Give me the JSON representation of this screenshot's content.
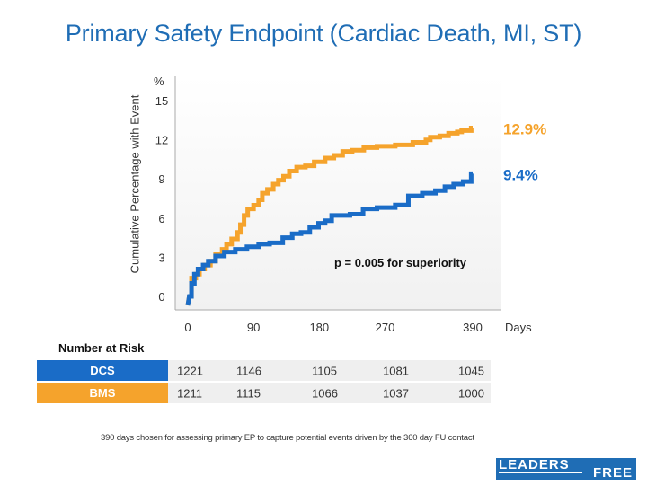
{
  "chart_data": {
    "type": "line",
    "title": "Primary Safety Endpoint (Cardiac Death, MI, ST)",
    "ylabel": "Cumulative Percentage with Event",
    "yunit": "%",
    "xlabel": "Days",
    "ylim": [
      0,
      15
    ],
    "xlim": [
      0,
      390
    ],
    "yticks": [
      "0",
      "3",
      "6",
      "9",
      "12",
      "15"
    ],
    "ytick_values": [
      0,
      3,
      6,
      9,
      12,
      15
    ],
    "xticks": [
      "0",
      "90",
      "180",
      "270",
      "390"
    ],
    "xtick_values": [
      0,
      90,
      180,
      270,
      390
    ],
    "grid": false,
    "annotation": "p = 0.005 for superiority",
    "series": [
      {
        "name": "BMS",
        "color": "#f5a32c",
        "end_label": "12.9%",
        "x": [
          0,
          2,
          5,
          11,
          16,
          23,
          31,
          38,
          47,
          53,
          60,
          68,
          72,
          77,
          82,
          90,
          97,
          102,
          109,
          117,
          124,
          131,
          139,
          149,
          161,
          173,
          188,
          200,
          212,
          225,
          241,
          259,
          284,
          308,
          326,
          332,
          345,
          357,
          369,
          375,
          388,
          390
        ],
        "y": [
          0,
          0,
          1.4,
          1.7,
          2.1,
          2.4,
          2.7,
          3.2,
          3.6,
          4.0,
          4.4,
          4.9,
          5.5,
          6.2,
          6.7,
          6.98,
          7.4,
          7.9,
          8.2,
          8.6,
          8.9,
          9.2,
          9.6,
          9.9,
          10.0,
          10.3,
          10.6,
          10.8,
          11.1,
          11.2,
          11.4,
          11.5,
          11.6,
          11.8,
          11.99,
          12.2,
          12.3,
          12.5,
          12.6,
          12.7,
          12.9,
          12.9
        ]
      },
      {
        "name": "DCS",
        "color": "#1a6cc7",
        "end_label": "9.4%",
        "x": [
          0,
          2,
          5,
          9,
          14,
          21,
          28,
          38,
          50,
          65,
          81,
          97,
          112,
          130,
          143,
          155,
          167,
          179,
          188,
          197,
          222,
          240,
          259,
          284,
          302,
          321,
          339,
          352,
          364,
          377,
          388,
          390
        ],
        "y": [
          0,
          0,
          1.0,
          1.7,
          2.1,
          2.4,
          2.7,
          3.1,
          3.4,
          3.6,
          3.8,
          4.0,
          4.1,
          4.5,
          4.8,
          4.9,
          5.3,
          5.6,
          5.8,
          6.2,
          6.3,
          6.7,
          6.8,
          7.0,
          7.7,
          7.9,
          8.1,
          8.4,
          8.6,
          8.8,
          9.4,
          9.4
        ]
      }
    ]
  },
  "number_at_risk": {
    "title": "Number at Risk",
    "rows": [
      {
        "label": "DCS",
        "color": "#1a6cc7",
        "values": [
          "1221",
          "1146",
          "1105",
          "1081",
          "1045"
        ]
      },
      {
        "label": "BMS",
        "color": "#f5a32c",
        "values": [
          "1211",
          "1115",
          "1066",
          "1037",
          "1000"
        ]
      }
    ]
  },
  "footnote": "390 days chosen for assessing primary EP to capture potential events driven by the 360 day FU contact",
  "logo": {
    "part1": "LEADERS",
    "part2": "FREE"
  }
}
